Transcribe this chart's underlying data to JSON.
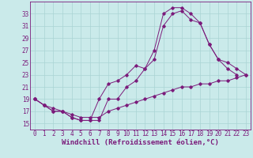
{
  "x_labels": [
    0,
    1,
    2,
    3,
    4,
    5,
    6,
    7,
    8,
    9,
    10,
    11,
    12,
    13,
    14,
    15,
    16,
    17,
    18,
    19,
    20,
    21,
    22,
    23
  ],
  "curve1_x": [
    0,
    1,
    2,
    3,
    4,
    5,
    6,
    7,
    8,
    9,
    10,
    11,
    12,
    13,
    14,
    15,
    16,
    17,
    18,
    19,
    20,
    21,
    22,
    23
  ],
  "curve1_y": [
    19,
    18,
    17.5,
    17,
    16.5,
    16,
    16,
    16,
    17,
    17.5,
    18,
    18.5,
    19,
    19.5,
    20,
    20.5,
    21,
    21,
    21.5,
    21.5,
    22,
    22,
    22.5,
    23
  ],
  "curve2_x": [
    0,
    1,
    2,
    3,
    4,
    5,
    6,
    7,
    8,
    9,
    10,
    11,
    12,
    13,
    14,
    15,
    16,
    17,
    18,
    19,
    20,
    21,
    22,
    23
  ],
  "curve2_y": [
    19,
    18,
    17,
    17,
    16,
    15.5,
    15.5,
    19,
    21.5,
    22,
    23,
    24.5,
    24,
    27,
    33,
    34,
    34,
    33,
    31.5,
    28,
    25.5,
    25,
    24,
    23
  ],
  "curve3_x": [
    0,
    1,
    2,
    3,
    4,
    5,
    6,
    7,
    8,
    9,
    10,
    11,
    12,
    13,
    14,
    15,
    16,
    17,
    18,
    19,
    20,
    21,
    22,
    23
  ],
  "curve3_y": [
    19,
    18,
    17,
    17,
    16,
    15.5,
    15.5,
    15.5,
    19,
    19,
    21,
    22,
    24,
    25.5,
    31,
    33,
    33.5,
    32,
    31.5,
    28,
    25.5,
    24,
    23,
    null
  ],
  "line_color": "#7B1B7B",
  "bg_color": "#caeaea",
  "grid_color": "#aad4d4",
  "xlabel": "Windchill (Refroidissement éolien,°C)",
  "ylim": [
    14,
    35
  ],
  "xlim": [
    -0.5,
    23.5
  ],
  "yticks": [
    15,
    17,
    19,
    21,
    23,
    25,
    27,
    29,
    31,
    33
  ],
  "tick_fontsize": 5.5,
  "label_fontsize": 6.5
}
